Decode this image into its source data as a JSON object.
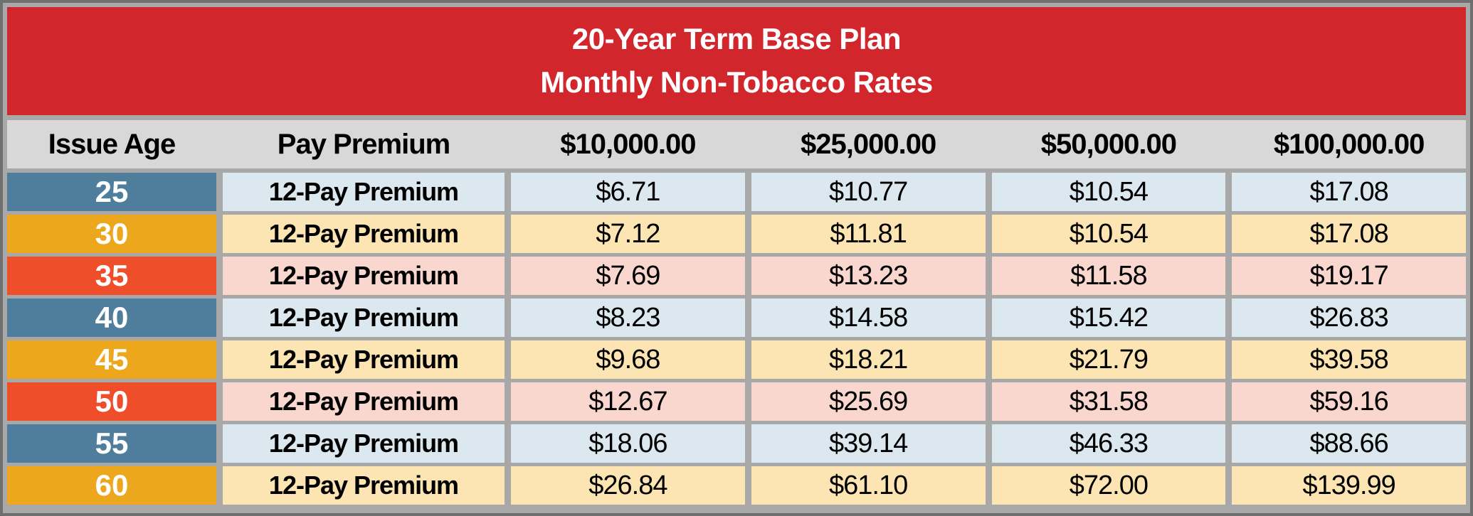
{
  "title": {
    "line1": "20-Year Term Base Plan",
    "line2": "Monthly Non-Tobacco Rates"
  },
  "colors": {
    "banner_red": "#D2262D",
    "header_gray": "#D8D8D8",
    "frame_gray": "#A8A8A8",
    "border_gray": "#6F6F6F",
    "age_blue": "#4E7E9C",
    "age_gold": "#ECA71C",
    "age_orange": "#EF4E2B",
    "tint_blue": "#DCE8EF",
    "tint_gold": "#FCE5B2",
    "tint_pink": "#FAD7CE"
  },
  "table": {
    "columns": [
      "Issue Age",
      "Pay Premium",
      "$10,000.00",
      "$25,000.00",
      "$50,000.00",
      "$100,000.00"
    ],
    "rows": [
      {
        "age": "25",
        "premium_type": "12-Pay Premium",
        "values": [
          "$6.71",
          "$10.77",
          "$10.54",
          "$17.08"
        ],
        "theme": "blue"
      },
      {
        "age": "30",
        "premium_type": "12-Pay Premium",
        "values": [
          "$7.12",
          "$11.81",
          "$10.54",
          "$17.08"
        ],
        "theme": "gold"
      },
      {
        "age": "35",
        "premium_type": "12-Pay Premium",
        "values": [
          "$7.69",
          "$13.23",
          "$11.58",
          "$19.17"
        ],
        "theme": "orange"
      },
      {
        "age": "40",
        "premium_type": "12-Pay Premium",
        "values": [
          "$8.23",
          "$14.58",
          "$15.42",
          "$26.83"
        ],
        "theme": "blue"
      },
      {
        "age": "45",
        "premium_type": "12-Pay Premium",
        "values": [
          "$9.68",
          "$18.21",
          "$21.79",
          "$39.58"
        ],
        "theme": "gold"
      },
      {
        "age": "50",
        "premium_type": "12-Pay Premium",
        "values": [
          "$12.67",
          "$25.69",
          "$31.58",
          "$59.16"
        ],
        "theme": "orange"
      },
      {
        "age": "55",
        "premium_type": "12-Pay Premium",
        "values": [
          "$18.06",
          "$39.14",
          "$46.33",
          "$88.66"
        ],
        "theme": "blue"
      },
      {
        "age": "60",
        "premium_type": "12-Pay Premium",
        "values": [
          "$26.84",
          "$61.10",
          "$72.00",
          "$139.99"
        ],
        "theme": "gold"
      }
    ]
  }
}
